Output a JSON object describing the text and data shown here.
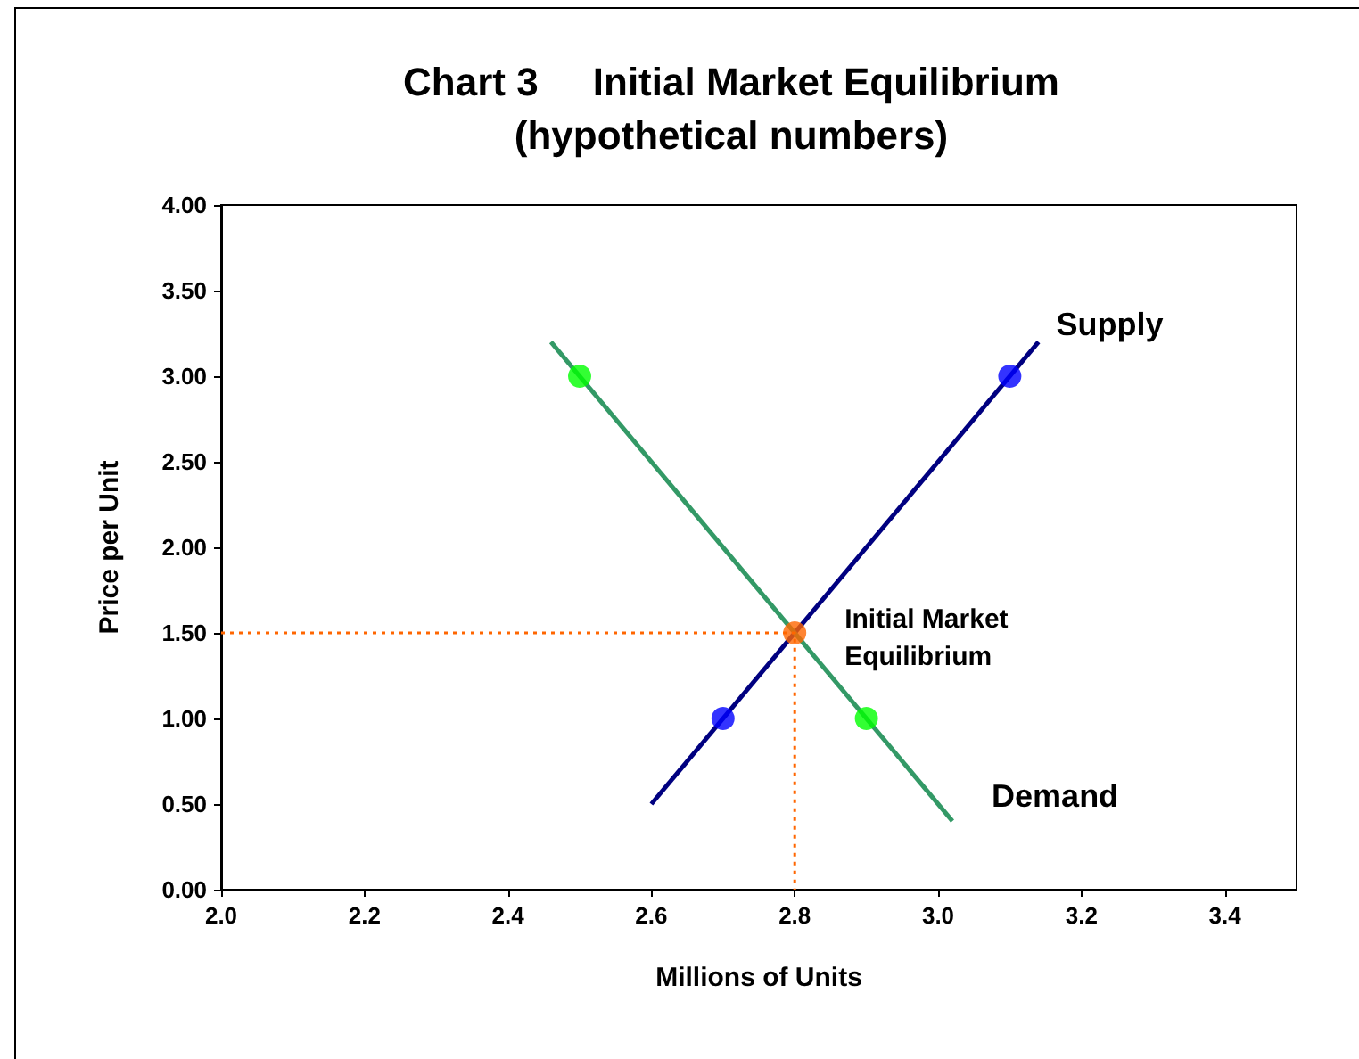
{
  "chart_data": {
    "type": "line",
    "title": "Chart 3     Initial Market Equilibrium",
    "subtitle": "(hypothetical numbers)",
    "xlabel": "Millions of Units",
    "ylabel": "Price per Unit",
    "xlim": [
      2.0,
      3.5
    ],
    "xticks": [
      {
        "value": 2.0,
        "label": "2.0"
      },
      {
        "value": 2.2,
        "label": "2.2"
      },
      {
        "value": 2.4,
        "label": "2.4"
      },
      {
        "value": 2.6,
        "label": "2.6"
      },
      {
        "value": 2.8,
        "label": "2.8"
      },
      {
        "value": 3.0,
        "label": "3.0"
      },
      {
        "value": 3.2,
        "label": "3.2"
      },
      {
        "value": 3.4,
        "label": "3.4"
      }
    ],
    "ylim": [
      0,
      4
    ],
    "yticks": [
      {
        "value": 0,
        "label": "0.00"
      },
      {
        "value": 0.5,
        "label": "0.50"
      },
      {
        "value": 1,
        "label": "1.00"
      },
      {
        "value": 1.5,
        "label": "1.50"
      },
      {
        "value": 2,
        "label": "2.00"
      },
      {
        "value": 2.5,
        "label": "2.50"
      },
      {
        "value": 3,
        "label": "3.00"
      },
      {
        "value": 3.5,
        "label": "3.50"
      },
      {
        "value": 4,
        "label": "4.00"
      }
    ],
    "grid": false,
    "legend": false,
    "series": [
      {
        "name": "Supply",
        "color": "#000080",
        "marker": "none",
        "x": [
          2.6,
          3.14
        ],
        "values": [
          0.5,
          3.2
        ]
      },
      {
        "name": "Demand",
        "color": "#339966",
        "marker": "none",
        "x": [
          2.46,
          3.02
        ],
        "values": [
          3.2,
          0.4
        ]
      },
      {
        "color": "#ff6600",
        "marker": "none",
        "line_style": "dotted",
        "x": [
          2.0,
          2.8,
          2.8
        ],
        "values": [
          1.5,
          1.5,
          0
        ]
      },
      {
        "type": "scatter",
        "color": "#0000ff",
        "marker": "circle",
        "x": [
          2.7,
          3.1
        ],
        "values": [
          1,
          3
        ]
      },
      {
        "type": "scatter",
        "color": "#00ff00",
        "marker": "circle",
        "x": [
          2.5,
          2.9
        ],
        "values": [
          3,
          1
        ]
      },
      {
        "type": "scatter",
        "color": "#ff6600",
        "marker": "circle",
        "x": [
          2.8
        ],
        "values": [
          1.5
        ]
      }
    ],
    "annotations": [
      {
        "text": "Initial Market Equilibrium",
        "x": 2.8,
        "y": 1.5
      }
    ]
  }
}
